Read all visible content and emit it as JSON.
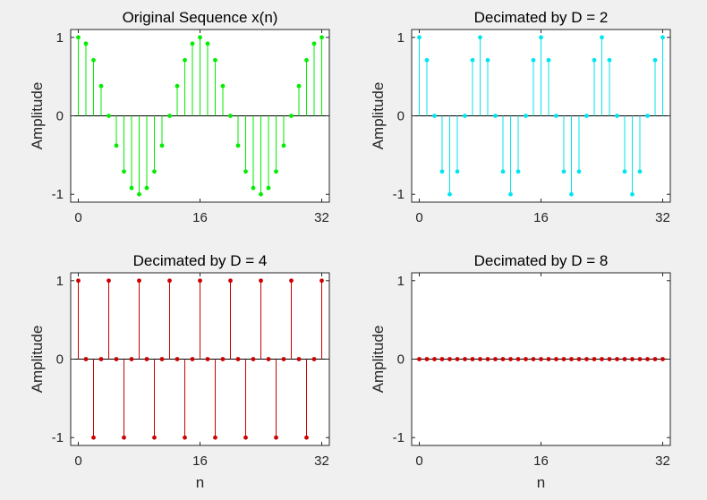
{
  "chart_data": [
    {
      "type": "stem",
      "title": "Original Sequence x(n)",
      "xlabel": "",
      "ylabel": "Amplitude",
      "color": "#00ee00",
      "xlim": [
        -1,
        33
      ],
      "ylim": [
        -1.1,
        1.1
      ],
      "xticks": [
        0,
        16,
        32
      ],
      "yticks": [
        -1,
        0,
        1
      ],
      "x": [
        0,
        1,
        2,
        3,
        4,
        5,
        6,
        7,
        8,
        9,
        10,
        11,
        12,
        13,
        14,
        15,
        16,
        17,
        18,
        19,
        20,
        21,
        22,
        23,
        24,
        25,
        26,
        27,
        28,
        29,
        30,
        31,
        32
      ],
      "values": [
        1,
        0.92,
        0.71,
        0.38,
        0,
        -0.38,
        -0.71,
        -0.92,
        -1,
        -0.92,
        -0.71,
        -0.38,
        0,
        0.38,
        0.71,
        0.92,
        1,
        0.92,
        0.71,
        0.38,
        0,
        -0.38,
        -0.71,
        -0.92,
        -1,
        -0.92,
        -0.71,
        -0.38,
        0,
        0.38,
        0.71,
        0.92,
        1
      ]
    },
    {
      "type": "stem",
      "title": "Decimated by D = 2",
      "xlabel": "",
      "ylabel": "Amplitude",
      "color": "#00e5ee",
      "xlim": [
        -1,
        33
      ],
      "ylim": [
        -1.1,
        1.1
      ],
      "xticks": [
        0,
        16,
        32
      ],
      "yticks": [
        -1,
        0,
        1
      ],
      "x": [
        0,
        1,
        2,
        3,
        4,
        5,
        6,
        7,
        8,
        9,
        10,
        11,
        12,
        13,
        14,
        15,
        16,
        17,
        18,
        19,
        20,
        21,
        22,
        23,
        24,
        25,
        26,
        27,
        28,
        29,
        30,
        31,
        32
      ],
      "values": [
        1,
        0.71,
        0,
        -0.71,
        -1,
        -0.71,
        0,
        0.71,
        1,
        0.71,
        0,
        -0.71,
        -1,
        -0.71,
        0,
        0.71,
        1,
        0.71,
        0,
        -0.71,
        -1,
        -0.71,
        0,
        0.71,
        1,
        0.71,
        0,
        -0.71,
        -1,
        -0.71,
        0,
        0.71,
        1
      ]
    },
    {
      "type": "stem",
      "title": "Decimated by D = 4",
      "xlabel": "n",
      "ylabel": "Amplitude",
      "color": "#cc0000",
      "xlim": [
        -1,
        33
      ],
      "ylim": [
        -1.1,
        1.1
      ],
      "xticks": [
        0,
        16,
        32
      ],
      "yticks": [
        -1,
        0,
        1
      ],
      "x": [
        0,
        1,
        2,
        3,
        4,
        5,
        6,
        7,
        8,
        9,
        10,
        11,
        12,
        13,
        14,
        15,
        16,
        17,
        18,
        19,
        20,
        21,
        22,
        23,
        24,
        25,
        26,
        27,
        28,
        29,
        30,
        31,
        32
      ],
      "values": [
        1,
        0,
        -1,
        0,
        1,
        0,
        -1,
        0,
        1,
        0,
        -1,
        0,
        1,
        0,
        -1,
        0,
        1,
        0,
        -1,
        0,
        1,
        0,
        -1,
        0,
        1,
        0,
        -1,
        0,
        1,
        0,
        -1,
        0,
        1
      ]
    },
    {
      "type": "stem",
      "title": "Decimated by D = 8",
      "xlabel": "n",
      "ylabel": "Amplitude",
      "color": "#cc0000",
      "xlim": [
        -1,
        33
      ],
      "ylim": [
        -1.1,
        1.1
      ],
      "xticks": [
        0,
        16,
        32
      ],
      "yticks": [
        -1,
        0,
        1
      ],
      "x": [
        0,
        1,
        2,
        3,
        4,
        5,
        6,
        7,
        8,
        9,
        10,
        11,
        12,
        13,
        14,
        15,
        16,
        17,
        18,
        19,
        20,
        21,
        22,
        23,
        24,
        25,
        26,
        27,
        28,
        29,
        30,
        31,
        32
      ],
      "values": [
        0,
        0,
        0,
        0,
        0,
        0,
        0,
        0,
        0,
        0,
        0,
        0,
        0,
        0,
        0,
        0,
        0,
        0,
        0,
        0,
        0,
        0,
        0,
        0,
        0,
        0,
        0,
        0,
        0,
        0,
        0,
        0,
        0
      ]
    }
  ]
}
